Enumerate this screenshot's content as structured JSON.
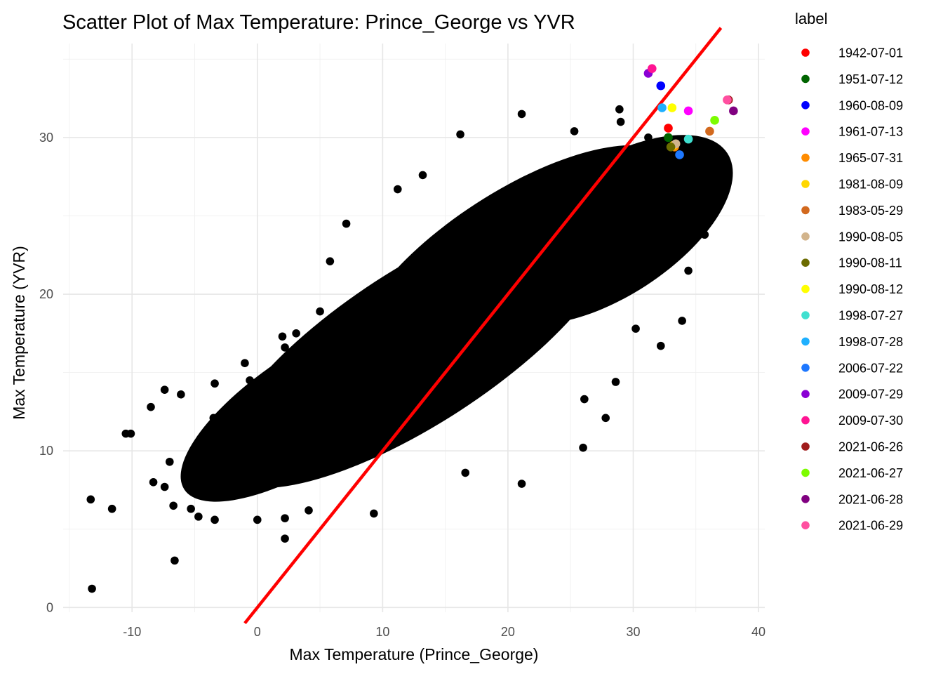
{
  "chart_data": {
    "type": "scatter",
    "title": "Scatter Plot of Max Temperature: Prince_George vs YVR",
    "xlabel": "Max Temperature (Prince_George)",
    "ylabel": "Max Temperature (YVR)",
    "xlim": [
      -15.5,
      40.5
    ],
    "ylim": [
      -0.3,
      36
    ],
    "x_ticks": [
      -10,
      0,
      10,
      20,
      30,
      40
    ],
    "y_ticks": [
      0,
      10,
      20,
      30
    ],
    "grid": true,
    "legend_title": "label",
    "legend_position": "right",
    "background_color": "#000000",
    "background_series": {
      "color": "#000000",
      "description_points": [
        [
          -13.3,
          6.9
        ],
        [
          -11.6,
          6.3
        ],
        [
          -13.2,
          1.2
        ],
        [
          -6.6,
          3.0
        ],
        [
          -10.5,
          11.1
        ],
        [
          -10.1,
          11.1
        ],
        [
          -8.5,
          12.8
        ],
        [
          -7.4,
          13.9
        ],
        [
          -6.1,
          13.6
        ],
        [
          -8.3,
          8.0
        ],
        [
          -7.4,
          7.7
        ],
        [
          -7.0,
          9.3
        ],
        [
          -6.7,
          6.5
        ],
        [
          -5.3,
          6.3
        ],
        [
          -4.7,
          5.8
        ],
        [
          -3.4,
          5.6
        ],
        [
          -2.7,
          8.4
        ],
        [
          -3.5,
          12.1
        ],
        [
          -3.4,
          14.3
        ],
        [
          -1.0,
          15.6
        ],
        [
          -0.6,
          14.5
        ],
        [
          2.0,
          17.3
        ],
        [
          2.2,
          16.6
        ],
        [
          3.1,
          17.5
        ],
        [
          2.2,
          4.4
        ],
        [
          2.2,
          5.7
        ],
        [
          0.0,
          5.6
        ],
        [
          4.1,
          6.2
        ],
        [
          5.0,
          18.9
        ],
        [
          5.8,
          22.1
        ],
        [
          7.1,
          24.5
        ],
        [
          9.3,
          6.0
        ],
        [
          11.2,
          26.7
        ],
        [
          13.2,
          27.6
        ],
        [
          16.2,
          30.2
        ],
        [
          21.1,
          31.5
        ],
        [
          25.3,
          30.4
        ],
        [
          28.9,
          31.8
        ],
        [
          21.1,
          7.9
        ],
        [
          16.6,
          8.6
        ],
        [
          28.6,
          14.4
        ],
        [
          27.8,
          12.1
        ],
        [
          32.2,
          16.7
        ],
        [
          33.9,
          18.3
        ],
        [
          35.7,
          23.8
        ],
        [
          34.4,
          21.5
        ],
        [
          30.2,
          17.8
        ],
        [
          26.0,
          10.2
        ],
        [
          29.0,
          31.0
        ],
        [
          31.2,
          30.0
        ],
        [
          32.3,
          25.7
        ],
        [
          26.1,
          13.3
        ]
      ]
    },
    "series": [
      {
        "name": "1942-07-01",
        "color": "#ff0000",
        "x": [
          32.8
        ],
        "y": [
          30.6
        ]
      },
      {
        "name": "1951-07-12",
        "color": "#006400",
        "x": [
          32.8
        ],
        "y": [
          30.0
        ]
      },
      {
        "name": "1960-08-09",
        "color": "#0000ff",
        "x": [
          32.2
        ],
        "y": [
          33.3
        ]
      },
      {
        "name": "1961-07-13",
        "color": "#ff00ff",
        "x": [
          34.4
        ],
        "y": [
          31.7
        ]
      },
      {
        "name": "1965-07-31",
        "color": "#ff8c00",
        "x": [
          33.3
        ],
        "y": [
          29.4
        ]
      },
      {
        "name": "1981-08-09",
        "color": "#ffd700",
        "x": [
          33.2
        ],
        "y": [
          29.5
        ]
      },
      {
        "name": "1983-05-29",
        "color": "#d2691e",
        "x": [
          36.1
        ],
        "y": [
          30.4
        ]
      },
      {
        "name": "1990-08-05",
        "color": "#d2b48c",
        "x": [
          33.4
        ],
        "y": [
          29.6
        ]
      },
      {
        "name": "1990-08-11",
        "color": "#6b6b00",
        "x": [
          33.0
        ],
        "y": [
          29.4
        ]
      },
      {
        "name": "1990-08-12",
        "color": "#ffff00",
        "x": [
          33.1
        ],
        "y": [
          31.9
        ]
      },
      {
        "name": "1998-07-27",
        "color": "#40e0d0",
        "x": [
          34.4
        ],
        "y": [
          29.9
        ]
      },
      {
        "name": "1998-07-28",
        "color": "#1fb0ff",
        "x": [
          32.3
        ],
        "y": [
          31.9
        ]
      },
      {
        "name": "2006-07-22",
        "color": "#1e78ff",
        "x": [
          33.7
        ],
        "y": [
          28.9
        ]
      },
      {
        "name": "2009-07-29",
        "color": "#8a00d4",
        "x": [
          31.2
        ],
        "y": [
          34.1
        ]
      },
      {
        "name": "2009-07-30",
        "color": "#ff1493",
        "x": [
          31.5
        ],
        "y": [
          34.4
        ]
      },
      {
        "name": "2021-06-26",
        "color": "#a01c1c",
        "x": [
          37.6
        ],
        "y": [
          32.4
        ]
      },
      {
        "name": "2021-06-27",
        "color": "#7cfc00",
        "x": [
          36.5
        ],
        "y": [
          31.1
        ]
      },
      {
        "name": "2021-06-28",
        "color": "#800080",
        "x": [
          38.0
        ],
        "y": [
          31.7
        ]
      },
      {
        "name": "2021-06-29",
        "color": "#ff4fa0",
        "x": [
          37.5
        ],
        "y": [
          32.4
        ]
      }
    ],
    "reference_line": {
      "type": "y=x",
      "color": "#ff0000"
    }
  }
}
